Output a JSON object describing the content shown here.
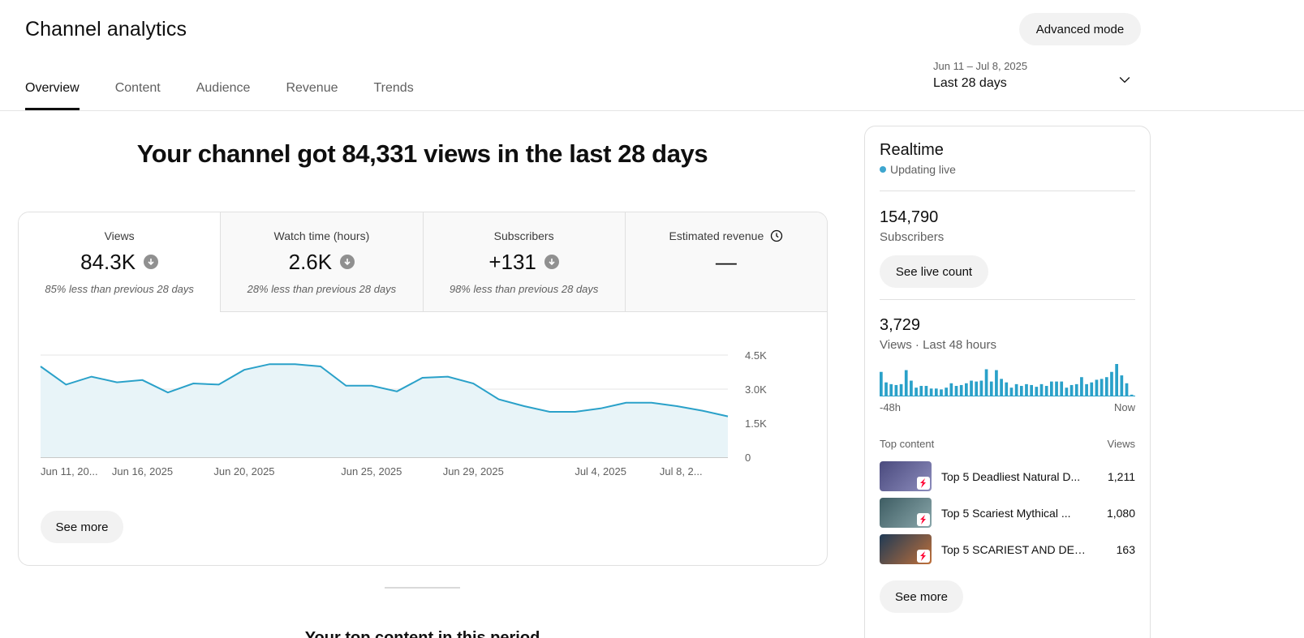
{
  "header": {
    "title": "Channel analytics",
    "advanced_mode_label": "Advanced mode"
  },
  "tabs": [
    {
      "label": "Overview",
      "active": true
    },
    {
      "label": "Content",
      "active": false
    },
    {
      "label": "Audience",
      "active": false
    },
    {
      "label": "Revenue",
      "active": false
    },
    {
      "label": "Trends",
      "active": false
    }
  ],
  "date_picker": {
    "range": "Jun 11 – Jul 8, 2025",
    "label": "Last 28 days",
    "icon": "chevron-down-icon"
  },
  "headline": "Your channel got 84,331 views in the last 28 days",
  "metrics": [
    {
      "label": "Views",
      "value": "84.3K",
      "compare": "85% less than previous 28 days",
      "trend": "down"
    },
    {
      "label": "Watch time (hours)",
      "value": "2.6K",
      "compare": "28% less than previous 28 days",
      "trend": "down"
    },
    {
      "label": "Subscribers",
      "value": "+131",
      "compare": "98% less than previous 28 days",
      "trend": "down"
    },
    {
      "label": "Estimated revenue",
      "value": "—",
      "compare": "",
      "trend": "none",
      "icon": "clock-icon"
    }
  ],
  "chart_data": {
    "type": "area",
    "series": [
      {
        "values": [
          4000,
          3200,
          3550,
          3300,
          3400,
          2850,
          3250,
          3200,
          3850,
          4100,
          4100,
          4000,
          3150,
          3150,
          2900,
          3500,
          3550,
          3250,
          2550,
          2250,
          2000,
          2000,
          2150,
          2400,
          2400,
          2250,
          2050,
          1800
        ]
      }
    ],
    "x_tick_labels": [
      "Jun 11, 20...",
      "Jun 16, 2025",
      "Jun 20, 2025",
      "Jun 25, 2025",
      "Jun 29, 2025",
      "Jul 4, 2025",
      "Jul 8, 2..."
    ],
    "x_tick_index": [
      0,
      4,
      8,
      13,
      17,
      22,
      26
    ],
    "y_tick_labels": [
      "4.5K",
      "3.0K",
      "1.5K",
      "0"
    ],
    "y_tick_values": [
      4500,
      3000,
      1500,
      0
    ],
    "ylim": [
      0,
      4500
    ],
    "grid": true,
    "line_color": "#2aa1c9",
    "fill_color": "#e8f4f8"
  },
  "overview_see_more": "See more",
  "top_content_heading": "Your top content in this period",
  "realtime": {
    "title": "Realtime",
    "live_label": "Updating live",
    "live_color": "#3ea6cf",
    "subscribers_value": "154,790",
    "subscribers_label": "Subscribers",
    "live_count_button": "See live count",
    "views_value": "3,729",
    "views_label": "Views · Last 48 hours",
    "spark_start": "-48h",
    "spark_end": "Now",
    "spark_values": [
      28,
      16,
      14,
      13,
      14,
      30,
      18,
      10,
      12,
      12,
      9,
      9,
      8,
      10,
      15,
      12,
      13,
      15,
      18,
      17,
      18,
      31,
      17,
      30,
      20,
      16,
      10,
      14,
      12,
      14,
      13,
      11,
      14,
      12,
      17,
      17,
      17,
      10,
      13,
      14,
      22,
      14,
      16,
      19,
      20,
      22,
      28,
      37,
      24,
      15,
      2
    ],
    "top_content_label": "Top content",
    "views_column_label": "Views",
    "top_content": [
      {
        "title": "Top 5 Deadliest Natural D...",
        "views": "1,211",
        "thumb_color": "#6e6e9e"
      },
      {
        "title": "Top 5 Scariest Mythical ...",
        "views": "1,080",
        "thumb_color": "#5b7a80"
      },
      {
        "title": "Top 5 SCARIEST AND DEA...",
        "views": "163",
        "thumb_color": "#3d5a73"
      }
    ],
    "see_more": "See more"
  }
}
